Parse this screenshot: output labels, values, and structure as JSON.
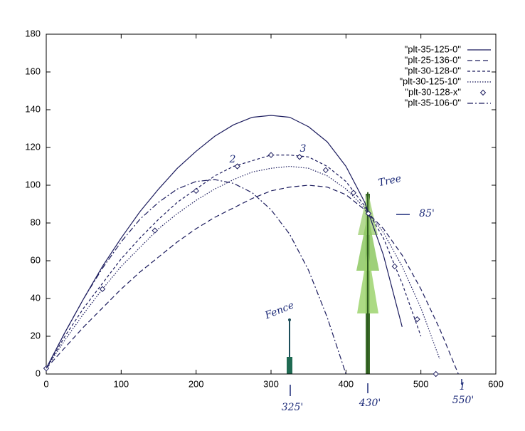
{
  "chart_data": {
    "type": "line",
    "x": [
      0,
      25,
      50,
      75,
      100,
      125,
      150,
      175,
      200,
      225,
      250,
      275,
      300,
      325,
      350,
      375,
      400,
      425,
      450,
      475,
      500,
      525,
      550
    ],
    "series": [
      {
        "name": "\"plt-35-125-0\"",
        "color": "#1c1c5e",
        "style": "solid",
        "values": [
          3,
          22,
          40,
          57,
          72,
          86,
          98,
          109,
          118,
          126,
          132,
          136,
          137,
          136,
          131,
          123,
          110,
          91,
          63,
          25,
          null,
          null,
          null
        ]
      },
      {
        "name": "\"plt-25-136-0\"",
        "color": "#1c1c5e",
        "style": "dashed",
        "values": [
          3,
          14,
          25,
          35,
          45,
          54,
          62,
          70,
          77,
          83,
          88,
          93,
          97,
          99,
          100,
          99,
          95,
          87,
          77,
          63,
          45,
          24,
          0
        ]
      },
      {
        "name": "\"plt-30-128-0\"",
        "color": "#1c1c5e",
        "style": "short-dashed",
        "values": [
          3,
          20,
          35,
          48,
          61,
          72,
          82,
          91,
          98,
          105,
          110,
          113,
          116,
          116,
          115,
          110,
          102,
          89,
          72,
          48,
          20,
          null,
          null
        ]
      },
      {
        "name": "\"plt-30-125-10\"",
        "color": "#1c1c5e",
        "style": "dotted",
        "values": [
          3,
          18,
          32,
          45,
          57,
          67,
          77,
          85,
          92,
          98,
          103,
          107,
          109,
          110,
          109,
          105,
          98,
          88,
          75,
          57,
          35,
          8,
          null
        ]
      },
      {
        "name": "\"plt-30-128-x\"",
        "color": "#1c1c5e",
        "style": "marker",
        "x": [
          0,
          75,
          145,
          200,
          255,
          300,
          338,
          373,
          410,
          430,
          465,
          495,
          520
        ],
        "values": [
          3,
          45,
          76,
          97,
          110,
          116,
          115,
          108,
          96,
          85,
          57,
          29,
          0
        ]
      },
      {
        "name": "\"plt-35-106-0\"",
        "color": "#1c1c5e",
        "style": "dash-dot",
        "values": [
          3,
          22,
          40,
          56,
          70,
          82,
          91,
          98,
          102,
          103,
          101,
          96,
          87,
          74,
          55,
          30,
          0,
          null,
          null,
          null,
          null,
          null,
          null
        ]
      }
    ],
    "xlim": [
      0,
      600
    ],
    "xticks": [
      0,
      100,
      200,
      300,
      400,
      500,
      600
    ],
    "ylim": [
      0,
      180
    ],
    "yticks": [
      0,
      20,
      40,
      60,
      80,
      100,
      120,
      140,
      160,
      180
    ],
    "legend": "top-right",
    "annotations": [
      "Tree",
      "Fence",
      "85'",
      "325'",
      "430'",
      "550'",
      "2",
      "3",
      "1"
    ]
  }
}
